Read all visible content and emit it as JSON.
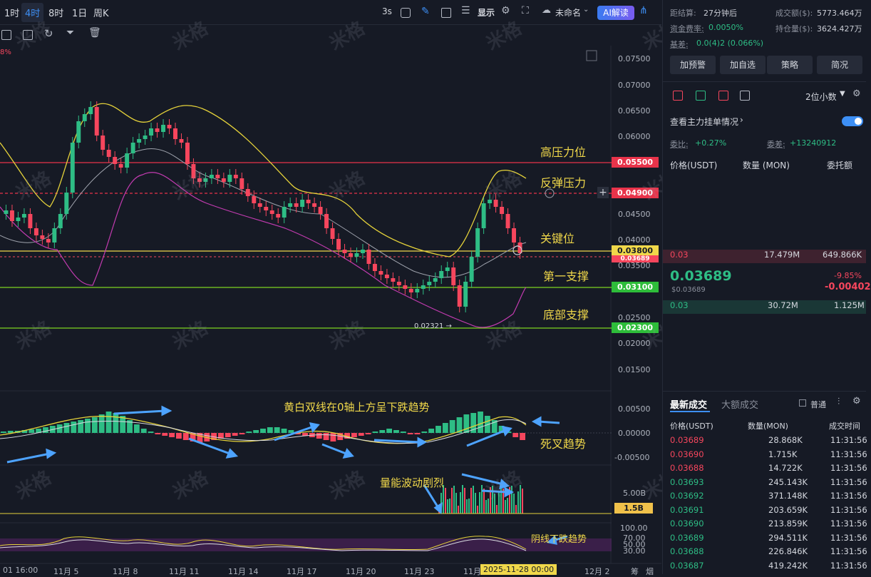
{
  "toolbar": {
    "timeframes": [
      "1时",
      "4时",
      "8时",
      "1日",
      "周K"
    ],
    "active_timeframe": "4时",
    "interval": "3s",
    "display_label": "显示",
    "cloud_label": "未命名",
    "ai_label": "AI解读"
  },
  "chart": {
    "percent_corner": "8%",
    "y_axis": [
      "0.07500",
      "0.07000",
      "0.06500",
      "0.06000",
      "0.04500",
      "0.04000",
      "0.03500",
      "0.02500",
      "0.02000",
      "0.01500"
    ],
    "price_tags": {
      "high": "0.05500",
      "rebound": "0.04900",
      "key": "0.03800",
      "current": "0.03689",
      "support1": "0.03100",
      "support2": "0.02300"
    },
    "low_label": "0.02321 →",
    "annotations": {
      "high": "高压力位",
      "rebound": "反弹压力",
      "key": "关键位",
      "support1": "第一支撑",
      "support2": "底部支撑",
      "macd": "黄白双线在0轴上方呈下跌趋势",
      "death_cross": "死叉趋势",
      "volume": "量能波动剧烈",
      "rsi": "阴线下跌趋势"
    },
    "macd_axis": [
      "0.00500",
      "0.00000",
      "-0.00500"
    ],
    "volume_axis": "5.00B",
    "volume_tag": "1.5B",
    "rsi_axis": [
      "100.00",
      "70.00",
      "50.00",
      "30.00"
    ],
    "x_axis": [
      "01 16:00",
      "11月 5",
      "11月 8",
      "11月 11",
      "11月 14",
      "11月 17",
      "11月 20",
      "11月 23",
      "11月",
      "12月 2",
      "筹",
      "烟"
    ],
    "crosshair_time": "2025-11-28 00:00",
    "watermark": "米格"
  },
  "panel": {
    "settle_label": "距结算:",
    "settle_value": "27分钟后",
    "funding_label": "资金费率:",
    "funding_value": "0.0050%",
    "basis_label": "基差:",
    "basis_value": "0.0(4)2 (0.066%)",
    "turnover_label": "成交额($):",
    "turnover_value": "5773.464万",
    "oi_label": "持仓量($):",
    "oi_value": "3624.427万",
    "buttons": [
      "加预警",
      "加自选",
      "策略",
      "简况"
    ],
    "decimals": "2位小数",
    "big_orders": "查看主力挂单情况",
    "ratio_label": "委比:",
    "ratio_value": "+0.27%",
    "diff_label": "委差:",
    "diff_value": "+13240912",
    "ob_headers": [
      "价格(USDT)",
      "数量 (MON)",
      "委托额"
    ],
    "ask": {
      "price": "0.03",
      "qty": "17.479M",
      "amount": "649.866K"
    },
    "last_price": "0.03689",
    "last_usd": "$0.03689",
    "change_pct": "-9.85%",
    "change_abs": "-0.00402",
    "bid": {
      "price": "0.03",
      "qty": "30.72M",
      "amount": "1.125M"
    },
    "trades_tabs": [
      "最新成交",
      "大额成交"
    ],
    "normal_label": "普通",
    "trade_headers": [
      "价格(USDT)",
      "数量(MON)",
      "成交时间"
    ],
    "trades": [
      {
        "price": "0.03689",
        "qty": "28.868K",
        "time": "11:31:56",
        "side": "sell"
      },
      {
        "price": "0.03690",
        "qty": "1.715K",
        "time": "11:31:56",
        "side": "sell"
      },
      {
        "price": "0.03688",
        "qty": "14.722K",
        "time": "11:31:56",
        "side": "sell"
      },
      {
        "price": "0.03693",
        "qty": "245.143K",
        "time": "11:31:56",
        "side": "buy"
      },
      {
        "price": "0.03692",
        "qty": "371.148K",
        "time": "11:31:56",
        "side": "buy"
      },
      {
        "price": "0.03691",
        "qty": "203.659K",
        "time": "11:31:56",
        "side": "buy"
      },
      {
        "price": "0.03690",
        "qty": "213.859K",
        "time": "11:31:56",
        "side": "buy"
      },
      {
        "price": "0.03689",
        "qty": "294.511K",
        "time": "11:31:56",
        "side": "buy"
      },
      {
        "price": "0.03688",
        "qty": "226.846K",
        "time": "11:31:56",
        "side": "buy"
      },
      {
        "price": "0.03687",
        "qty": "419.242K",
        "time": "11:31:56",
        "side": "buy"
      }
    ]
  },
  "colors": {
    "up": "#2ebd85",
    "down": "#f6465d",
    "accent": "#3d8ff5",
    "note": "#f0d84a"
  }
}
